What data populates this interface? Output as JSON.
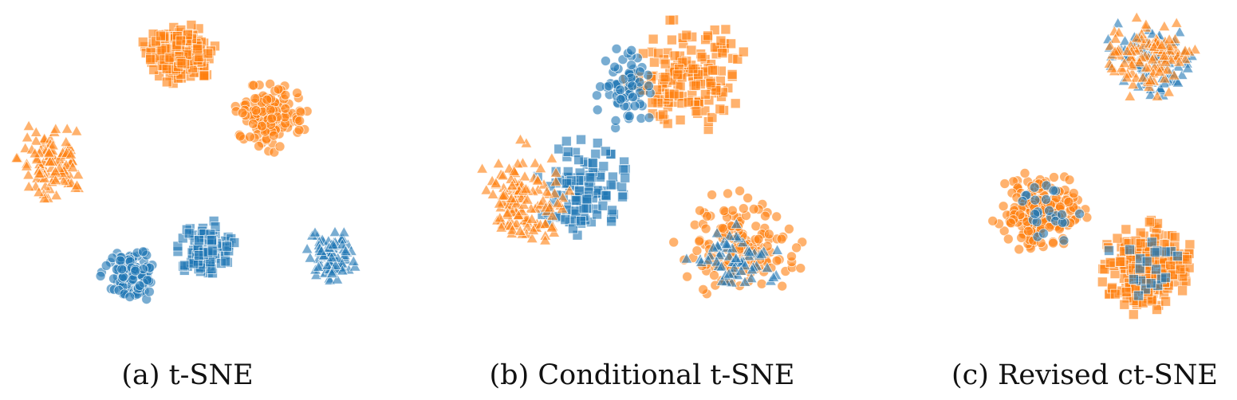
{
  "colors": {
    "blue": "#1f77b4",
    "orange": "#ff7f0e"
  },
  "captions": [
    "(a) t-SNE",
    "(b) Conditional t-SNE",
    "(c) Revised ct-SNE"
  ],
  "chart_data": [
    {
      "type": "scatter",
      "title": "(a) t-SNE",
      "xlabel": "",
      "ylabel": "",
      "grid": false,
      "axes": "hidden",
      "xlim": [
        0,
        500
      ],
      "ylim": [
        0,
        430
      ],
      "clusters": [
        {
          "color": "orange",
          "marker": "square",
          "center": [
            225,
            68
          ],
          "spread": [
            50,
            43
          ],
          "count": 170
        },
        {
          "color": "orange",
          "marker": "circle",
          "center": [
            338,
            147
          ],
          "spread": [
            50,
            45
          ],
          "count": 130
        },
        {
          "color": "orange",
          "marker": "triangle",
          "center": [
            65,
            200
          ],
          "spread": [
            50,
            55
          ],
          "count": 110
        },
        {
          "color": "blue",
          "marker": "circle",
          "center": [
            165,
            345
          ],
          "spread": [
            40,
            38
          ],
          "count": 110
        },
        {
          "color": "blue",
          "marker": "square",
          "center": [
            258,
            315
          ],
          "spread": [
            40,
            40
          ],
          "count": 110
        },
        {
          "color": "blue",
          "marker": "triangle",
          "center": [
            415,
            322
          ],
          "spread": [
            33,
            38
          ],
          "count": 90
        }
      ]
    },
    {
      "type": "scatter",
      "title": "(b) Conditional t-SNE",
      "xlabel": "",
      "ylabel": "",
      "grid": false,
      "axes": "hidden",
      "xlim": [
        520,
        1040
      ],
      "ylim": [
        0,
        430
      ],
      "clusters": [
        {
          "color": "orange",
          "marker": "square",
          "center": [
            860,
            95
          ],
          "spread": [
            80,
            75
          ],
          "count": 160
        },
        {
          "color": "blue",
          "marker": "circle",
          "center": [
            785,
            110
          ],
          "spread": [
            45,
            55
          ],
          "count": 70
        },
        {
          "color": "blue",
          "marker": "square",
          "center": [
            735,
            235
          ],
          "spread": [
            65,
            65
          ],
          "count": 110
        },
        {
          "color": "orange",
          "marker": "triangle",
          "center": [
            655,
            250
          ],
          "spread": [
            60,
            75
          ],
          "count": 130
        },
        {
          "color": "orange",
          "marker": "circle",
          "center": [
            925,
            310
          ],
          "spread": [
            85,
            75
          ],
          "count": 150
        },
        {
          "color": "blue",
          "marker": "triangle",
          "center": [
            920,
            325
          ],
          "spread": [
            60,
            45
          ],
          "count": 60
        }
      ]
    },
    {
      "type": "scatter",
      "title": "(c) Revised ct-SNE",
      "xlabel": "",
      "ylabel": "",
      "grid": false,
      "axes": "hidden",
      "xlim": [
        1200,
        1551
      ],
      "ylim": [
        0,
        430
      ],
      "clusters": [
        {
          "color": "blue",
          "marker": "triangle",
          "center": [
            1440,
            72
          ],
          "spread": [
            62,
            55
          ],
          "count": 90
        },
        {
          "color": "orange",
          "marker": "triangle",
          "center": [
            1440,
            72
          ],
          "spread": [
            62,
            55
          ],
          "count": 110
        },
        {
          "color": "orange",
          "marker": "circle",
          "center": [
            1305,
            268
          ],
          "spread": [
            62,
            58
          ],
          "count": 200
        },
        {
          "color": "blue",
          "marker": "circle",
          "center": [
            1305,
            268
          ],
          "spread": [
            55,
            52
          ],
          "count": 25
        },
        {
          "color": "orange",
          "marker": "square",
          "center": [
            1437,
            335
          ],
          "spread": [
            62,
            62
          ],
          "count": 230
        },
        {
          "color": "blue",
          "marker": "square",
          "center": [
            1437,
            335
          ],
          "spread": [
            55,
            55
          ],
          "count": 20
        }
      ]
    }
  ]
}
